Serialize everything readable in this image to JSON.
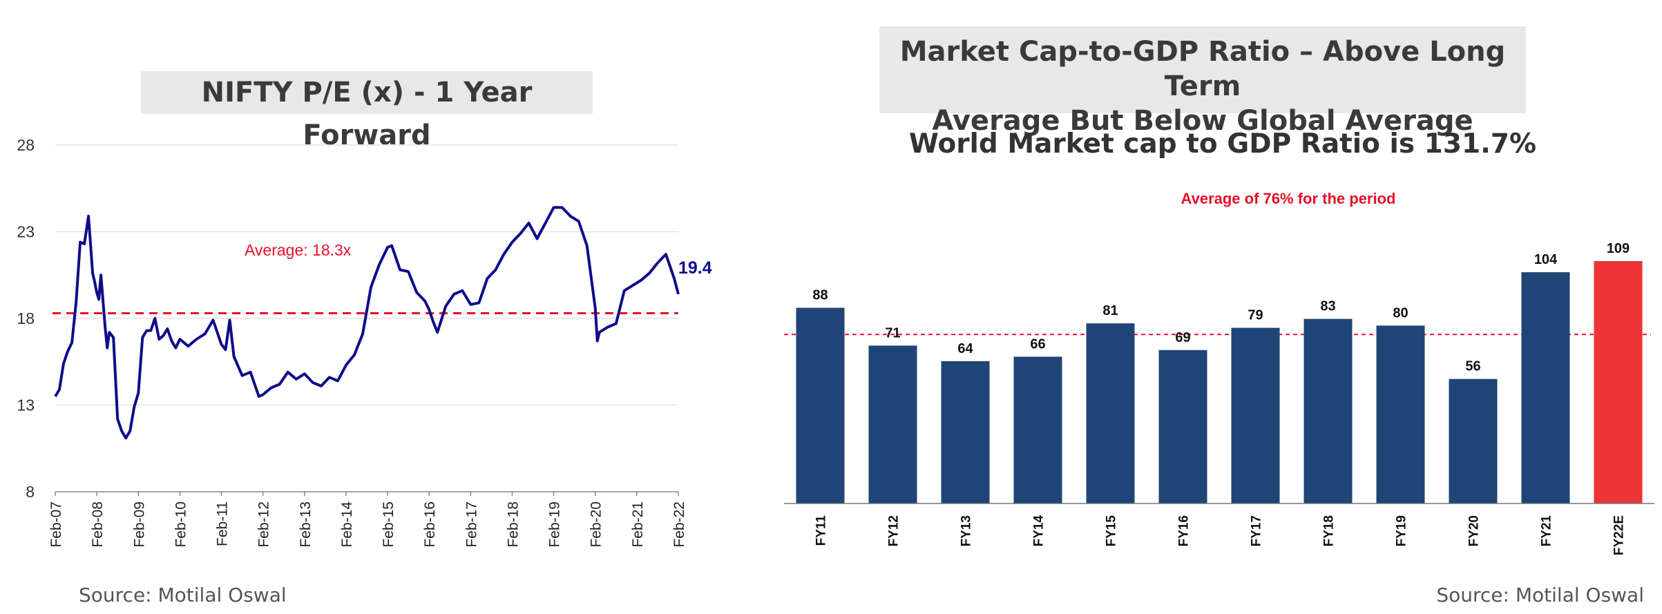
{
  "left": {
    "title": "NIFTY P/E (x) - 1 Year Forward",
    "source": "Source: Motilal Oswal"
  },
  "right": {
    "title_line1": "Market Cap-to-GDP Ratio – Above Long Term",
    "title_line2": "Average But Below Global Average",
    "subtitle": "World Market cap to GDP Ratio is 131.7%",
    "source": "Source: Motilal Oswal"
  },
  "colors": {
    "line": "#0d0d8a",
    "avg": "#e8102a",
    "bar": "#1f4576",
    "bar_highlight": "#ee3338"
  },
  "chart_data": [
    {
      "type": "line",
      "title": "NIFTY P/E (x) - 1 Year Forward",
      "ylim": [
        8,
        28
      ],
      "yticks": [
        8,
        13,
        18,
        23,
        28
      ],
      "xticks": [
        "Feb-07",
        "Feb-08",
        "Feb-09",
        "Feb-10",
        "Feb-11",
        "Feb-12",
        "Feb-13",
        "Feb-14",
        "Feb-15",
        "Feb-16",
        "Feb-17",
        "Feb-18",
        "Feb-19",
        "Feb-20",
        "Feb-21",
        "Feb-22"
      ],
      "grid": true,
      "average": {
        "value": 18.3,
        "label": "Average: 18.3x"
      },
      "end_label": "19.4",
      "series": [
        {
          "x": [
            2007.0,
            2007.1,
            2007.2,
            2007.3,
            2007.4,
            2007.5,
            2007.6,
            2007.7,
            2007.8,
            2007.9,
            2007.95,
            2008.0,
            2008.05,
            2008.1,
            2008.2,
            2008.25,
            2008.3,
            2008.4,
            2008.5,
            2008.6,
            2008.7,
            2008.8,
            2008.9,
            2009.0,
            2009.1,
            2009.2,
            2009.3,
            2009.4,
            2009.5,
            2009.6,
            2009.7,
            2009.8,
            2009.9,
            2010.0,
            2010.2,
            2010.4,
            2010.6,
            2010.8,
            2011.0,
            2011.1,
            2011.2,
            2011.3,
            2011.5,
            2011.7,
            2011.9,
            2012.0,
            2012.2,
            2012.4,
            2012.6,
            2012.8,
            2013.0,
            2013.2,
            2013.4,
            2013.6,
            2013.8,
            2014.0,
            2014.2,
            2014.4,
            2014.6,
            2014.8,
            2015.0,
            2015.1,
            2015.3,
            2015.5,
            2015.7,
            2015.9,
            2016.0,
            2016.1,
            2016.2,
            2016.4,
            2016.6,
            2016.8,
            2017.0,
            2017.2,
            2017.4,
            2017.6,
            2017.8,
            2018.0,
            2018.2,
            2018.4,
            2018.6,
            2018.8,
            2019.0,
            2019.2,
            2019.4,
            2019.6,
            2019.8,
            2020.0,
            2020.05,
            2020.1,
            2020.3,
            2020.5,
            2020.7,
            2020.9,
            2021.1,
            2021.3,
            2021.5,
            2021.7,
            2021.9,
            2022.0
          ],
          "y": [
            13.5,
            13.9,
            15.4,
            16.1,
            16.6,
            18.9,
            22.4,
            22.3,
            23.9,
            20.6,
            20.1,
            19.5,
            19.1,
            20.5,
            17.5,
            16.3,
            17.2,
            16.9,
            12.2,
            11.5,
            11.1,
            11.5,
            12.9,
            13.7,
            16.9,
            17.3,
            17.3,
            18.0,
            16.8,
            17.0,
            17.4,
            16.7,
            16.3,
            16.8,
            16.4,
            16.8,
            17.1,
            17.9,
            16.5,
            16.2,
            17.9,
            15.8,
            14.7,
            14.9,
            13.5,
            13.6,
            14.0,
            14.2,
            14.9,
            14.5,
            14.8,
            14.3,
            14.1,
            14.6,
            14.4,
            15.3,
            15.9,
            17.1,
            19.8,
            21.1,
            22.1,
            22.2,
            20.8,
            20.7,
            19.5,
            19.0,
            18.5,
            17.8,
            17.2,
            18.7,
            19.4,
            19.6,
            18.8,
            18.9,
            20.3,
            20.8,
            21.7,
            22.4,
            22.9,
            23.5,
            22.6,
            23.5,
            24.4,
            24.4,
            23.9,
            23.6,
            22.2,
            18.6,
            16.7,
            17.2,
            17.5,
            17.7,
            19.6,
            19.9,
            20.2,
            20.6,
            21.2,
            21.7,
            20.3,
            19.4
          ]
        }
      ]
    },
    {
      "type": "bar",
      "title": "World Market cap to GDP Ratio is 131.7%",
      "categories": [
        "FY11",
        "FY12",
        "FY13",
        "FY14",
        "FY15",
        "FY16",
        "FY17",
        "FY18",
        "FY19",
        "FY20",
        "FY21",
        "FY22E"
      ],
      "values": [
        88,
        71,
        64,
        66,
        81,
        69,
        79,
        83,
        80,
        56,
        104,
        109
      ],
      "ylim": [
        0,
        115
      ],
      "average": {
        "value": 76,
        "label": "Average of 76% for the period"
      },
      "highlight_index": 11
    }
  ]
}
